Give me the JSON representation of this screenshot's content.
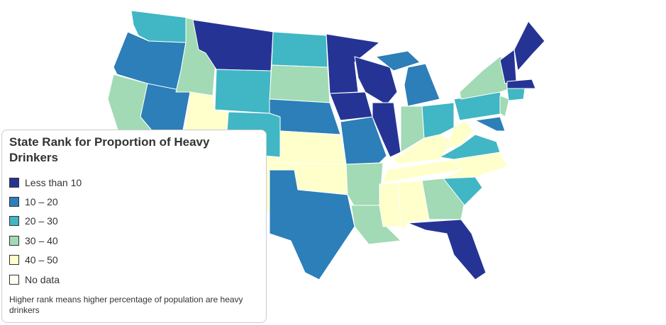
{
  "legend": {
    "title": "State Rank for Proportion of Heavy Drinkers",
    "items": [
      {
        "label": "Less than 10",
        "color": "#253494"
      },
      {
        "label": "10 – 20",
        "color": "#2c7fb8"
      },
      {
        "label": "20 – 30",
        "color": "#41b6c4"
      },
      {
        "label": "30 – 40",
        "color": "#a1dab4"
      },
      {
        "label": "40 – 50",
        "color": "#ffffcc"
      },
      {
        "label": "No data",
        "color": "#fffff2"
      }
    ],
    "note": "Higher rank means higher percentage of population are heavy drinkers"
  }
}
